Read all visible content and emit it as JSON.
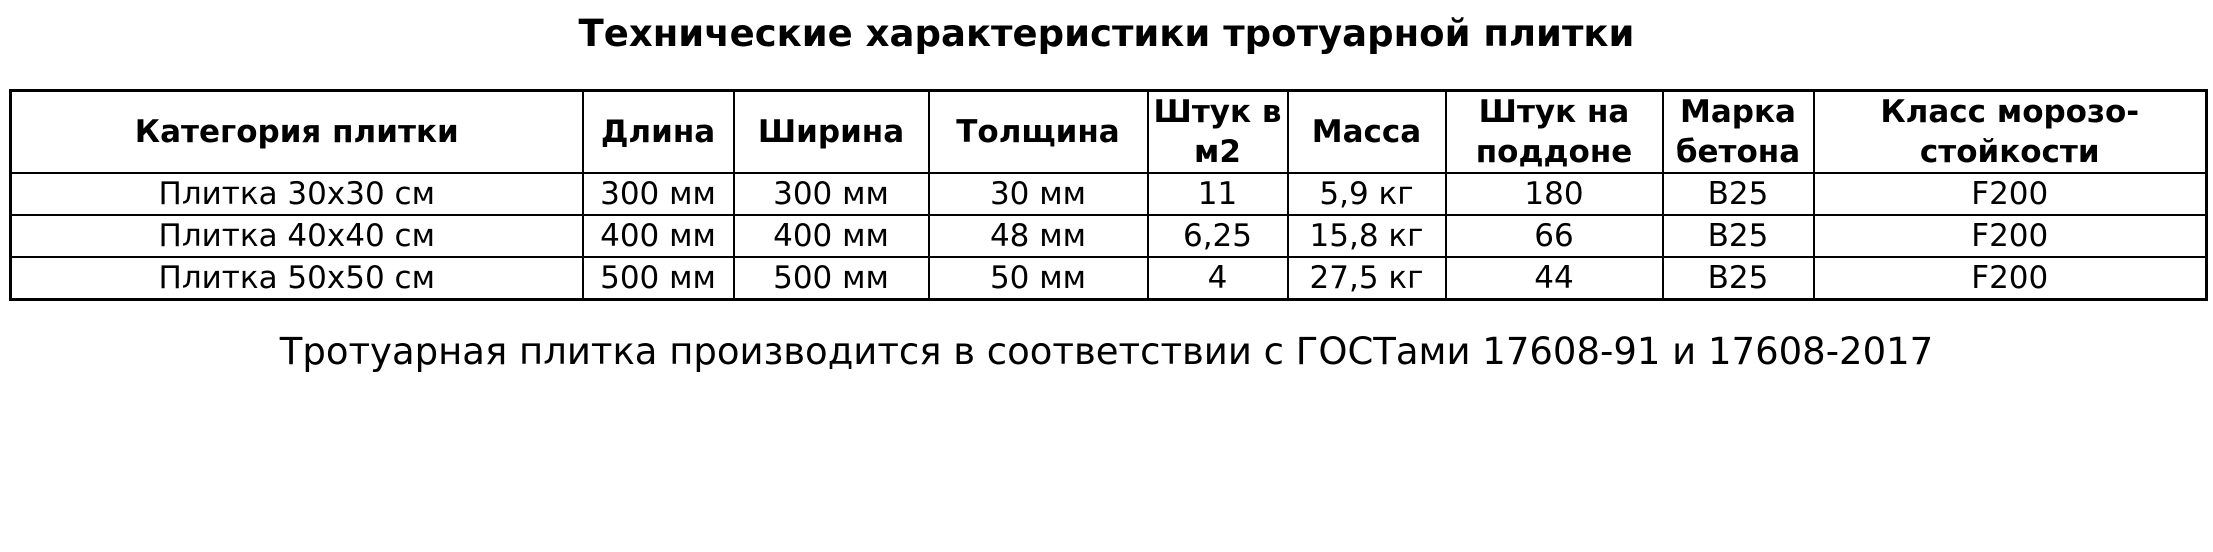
{
  "title": "Технические характеристики тротуарной плитки",
  "table": {
    "headers": [
      "Категория плитки",
      "Длина",
      "Ширина",
      "Толщина",
      "Штук в м2",
      "Масса",
      "Штук на поддоне",
      "Марка бетона",
      "Класс морозо-стойкости"
    ],
    "rows": [
      [
        "Плитка 30х30 см",
        "300 мм",
        "300 мм",
        "30 мм",
        "11",
        "5,9 кг",
        "180",
        "B25",
        "F200"
      ],
      [
        "Плитка 40х40 см",
        "400 мм",
        "400 мм",
        "48 мм",
        "6,25",
        "15,8 кг",
        "66",
        "B25",
        "F200"
      ],
      [
        "Плитка 50х50 см",
        "500 мм",
        "500 мм",
        "50 мм",
        "4",
        "27,5 кг",
        "44",
        "B25",
        "F200"
      ]
    ]
  },
  "note": "Тротуарная плитка производится в соответствии с ГОСТами 17608-91 и 17608-2017"
}
